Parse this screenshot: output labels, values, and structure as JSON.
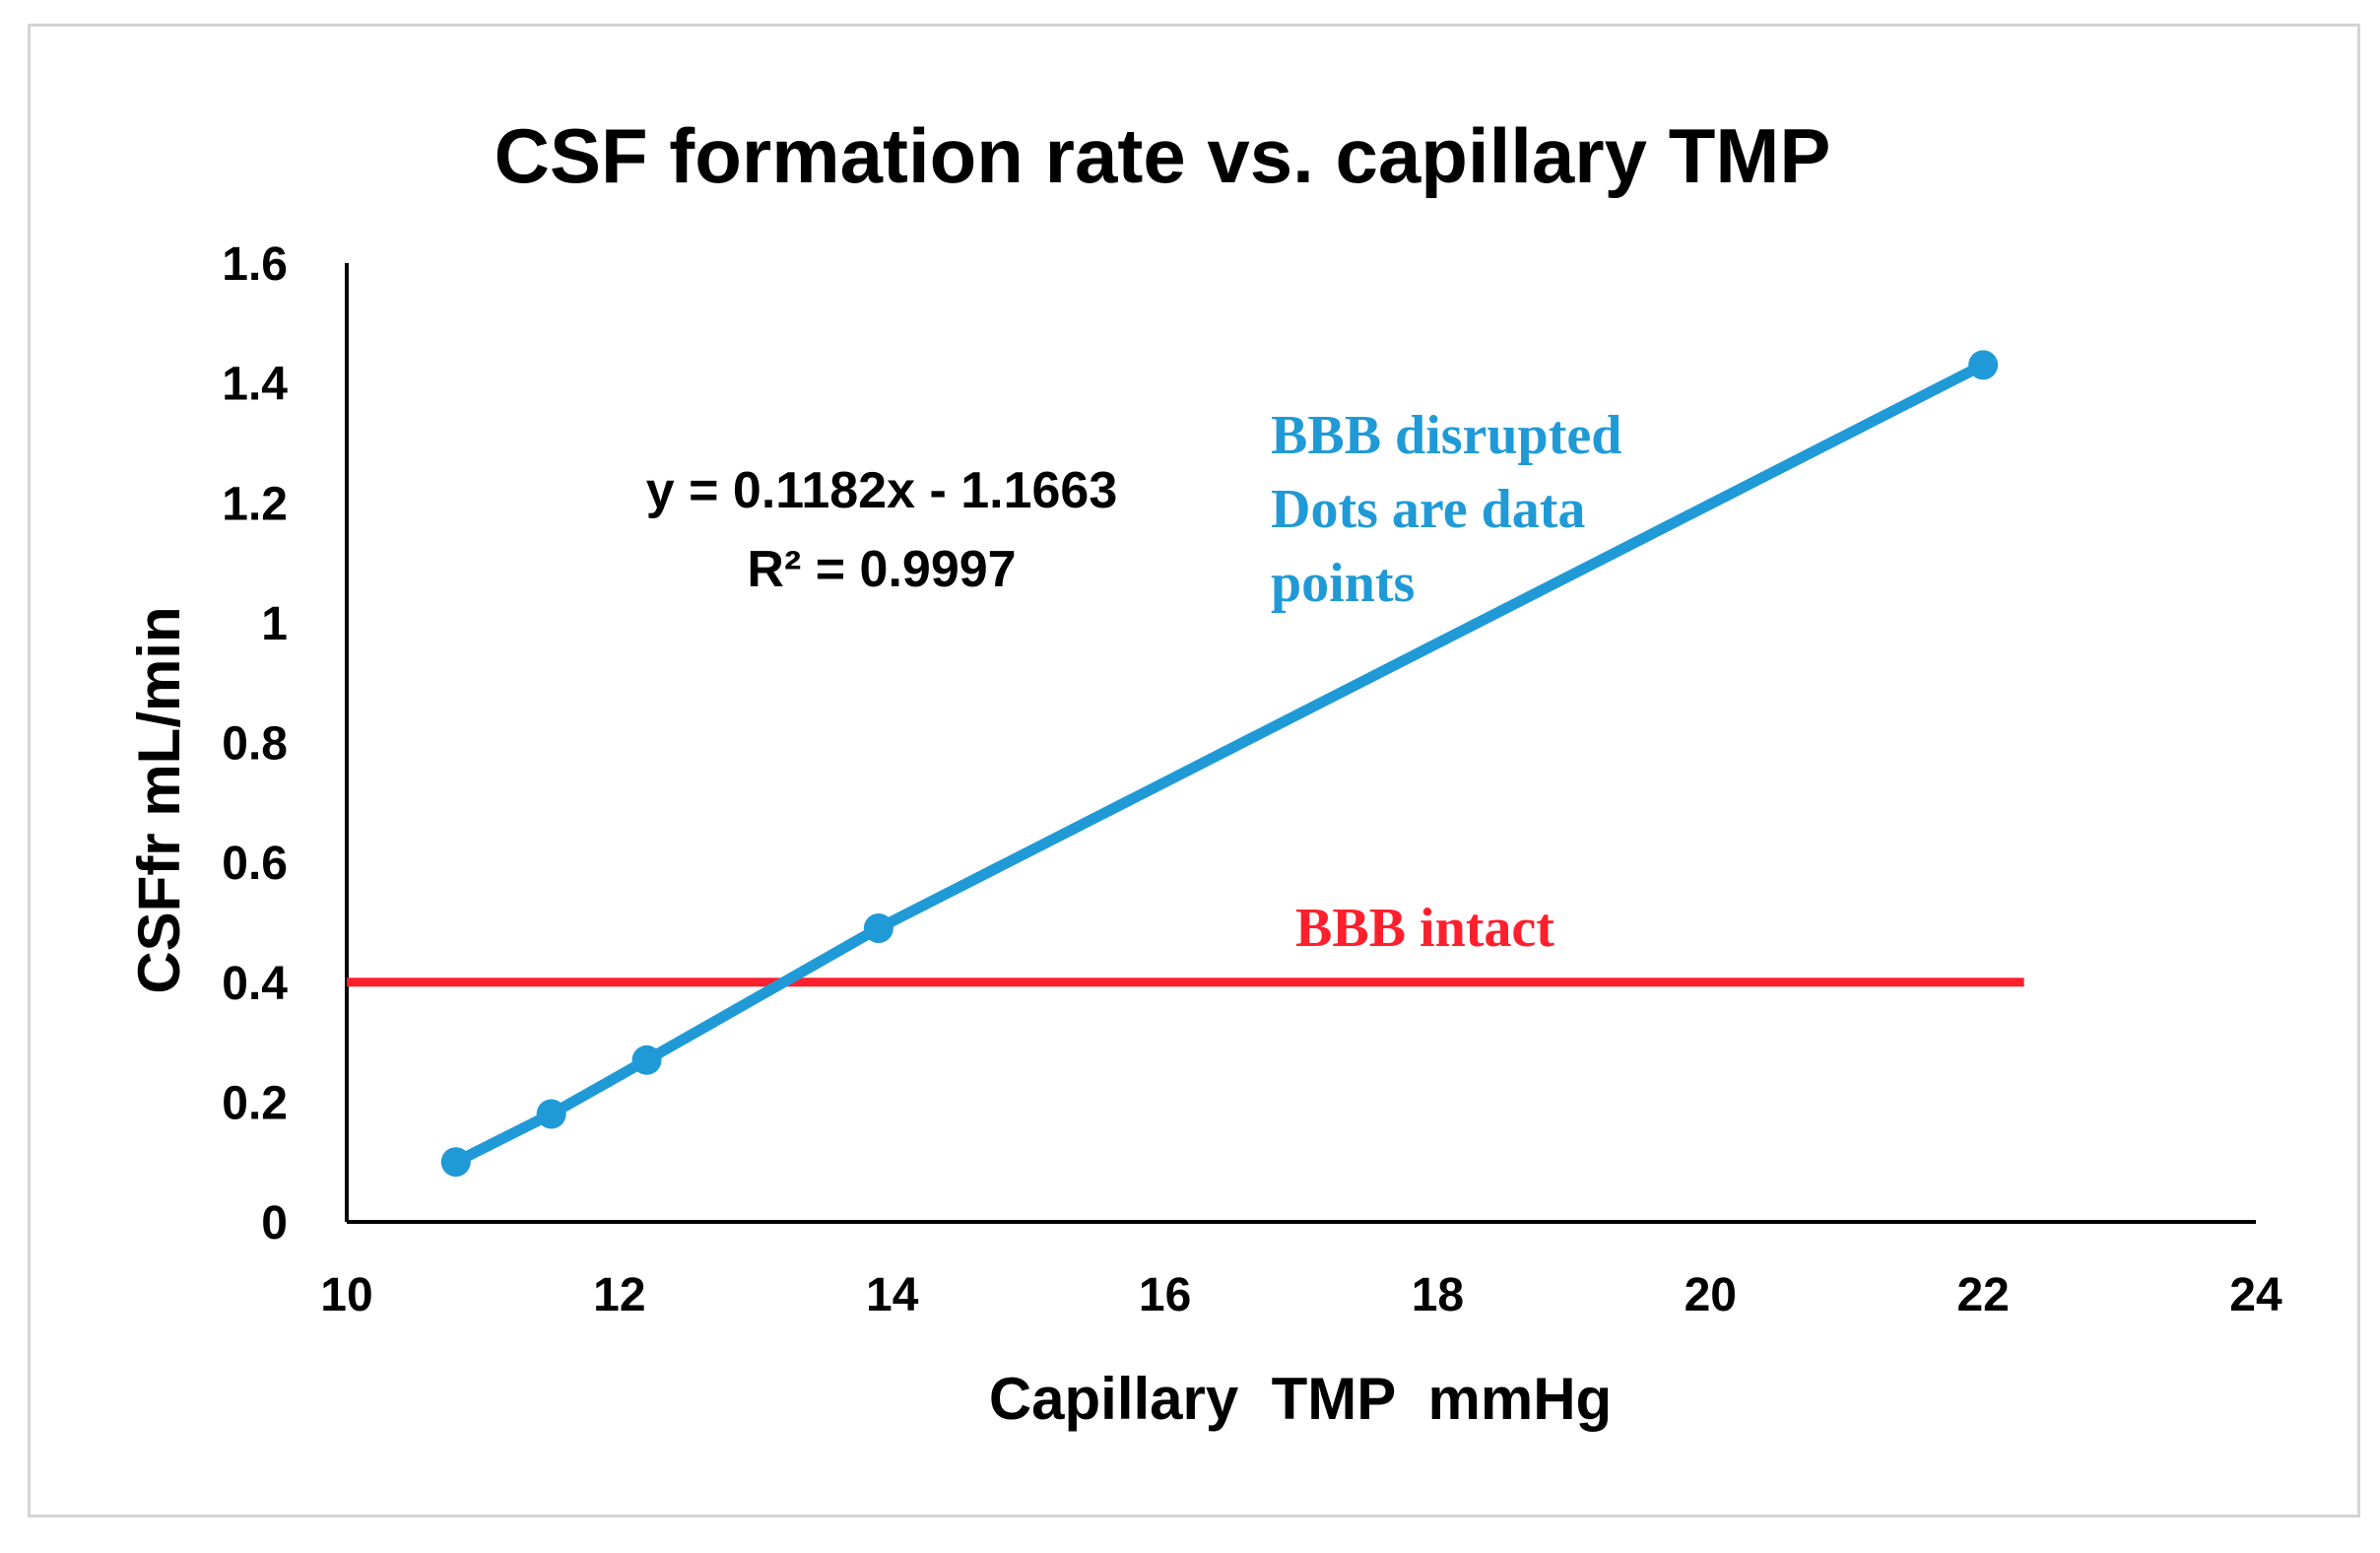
{
  "chart_data": {
    "type": "line",
    "title": "CSF formation rate vs. capillary TMP",
    "xlabel": "Capillary  TMP  mmHg",
    "ylabel": "CSFfr mL/min",
    "xlim": [
      10,
      24
    ],
    "ylim": [
      0,
      1.6
    ],
    "x_ticks": [
      "10",
      "12",
      "14",
      "16",
      "18",
      "20",
      "22",
      "24"
    ],
    "y_ticks": [
      "0",
      "0.2",
      "0.4",
      "0.6",
      "0.8",
      "1",
      "1.2",
      "1.4",
      "1.6"
    ],
    "grid": false,
    "series": [
      {
        "name": "BBB disrupted",
        "color": "#1f9ad6",
        "x": [
          10.8,
          11.5,
          12.2,
          13.9,
          22.0
        ],
        "y": [
          0.1,
          0.18,
          0.27,
          0.49,
          1.43
        ]
      },
      {
        "name": "BBB intact",
        "color": "#ff1f2d",
        "x": [
          10,
          22.3
        ],
        "y": [
          0.4,
          0.4
        ]
      }
    ],
    "annotations": {
      "equation": "y = 0.1182x - 1.1663",
      "r_squared": "R² = 0.9997",
      "disrupted_lines": [
        "BBB disrupted",
        "Dots are data",
        "points"
      ],
      "intact_label": "BBB intact"
    }
  }
}
